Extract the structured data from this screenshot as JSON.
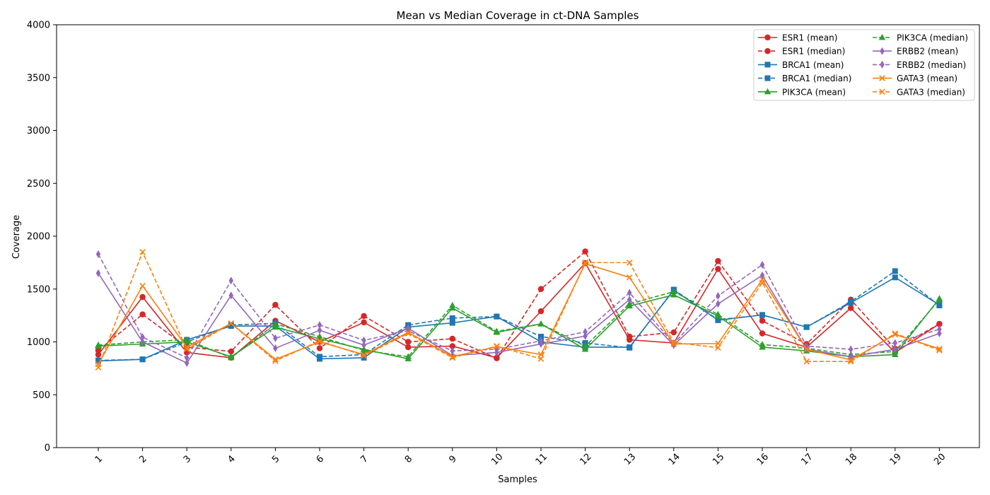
{
  "chart_data": {
    "type": "line",
    "title": "Mean vs Median Coverage in ct-DNA Samples",
    "xlabel": "Samples",
    "ylabel": "Coverage",
    "x": [
      1,
      2,
      3,
      4,
      5,
      6,
      7,
      8,
      9,
      10,
      11,
      12,
      13,
      14,
      15,
      16,
      17,
      18,
      19,
      20
    ],
    "ylim": [
      0,
      4000
    ],
    "yticks": [
      0,
      500,
      1000,
      1500,
      2000,
      2500,
      3000,
      3500,
      4000
    ],
    "grid": false,
    "legend_position": "top-right",
    "series": [
      {
        "name": "ESR1 (mean)",
        "color": "#d62728",
        "marker": "circle",
        "dashed": false,
        "values": [
          880,
          1425,
          900,
          850,
          1200,
          1000,
          1185,
          950,
          960,
          850,
          1290,
          1745,
          1020,
          990,
          1690,
          1080,
          950,
          1320,
          900,
          1170
        ]
      },
      {
        "name": "ESR1 (median)",
        "color": "#d62728",
        "marker": "circle",
        "dashed": true,
        "values": [
          920,
          1260,
          950,
          910,
          1350,
          940,
          1245,
          1000,
          1030,
          845,
          1500,
          1855,
          1050,
          1090,
          1765,
          1200,
          980,
          1400,
          935,
          1170
        ]
      },
      {
        "name": "BRCA1 (mean)",
        "color": "#1f77b4",
        "marker": "square",
        "dashed": false,
        "values": [
          820,
          835,
          1020,
          1150,
          1150,
          840,
          850,
          1140,
          1180,
          1240,
          1000,
          950,
          950,
          1490,
          1205,
          1255,
          1140,
          1370,
          1610,
          1350
        ]
      },
      {
        "name": "BRCA1 (median)",
        "color": "#1f77b4",
        "marker": "square",
        "dashed": true,
        "values": [
          825,
          835,
          1000,
          1160,
          1175,
          860,
          880,
          1160,
          1225,
          1240,
          1050,
          990,
          945,
          1495,
          1210,
          1255,
          1140,
          1380,
          1670,
          1345
        ]
      },
      {
        "name": "PIK3CA (mean)",
        "color": "#2ca02c",
        "marker": "triangle",
        "dashed": false,
        "values": [
          960,
          980,
          1000,
          860,
          1140,
          1030,
          930,
          840,
          1320,
          1090,
          1170,
          930,
          1340,
          1445,
          1245,
          950,
          915,
          860,
          880,
          1410
        ]
      },
      {
        "name": "PIK3CA (median)",
        "color": "#2ca02c",
        "marker": "triangle",
        "dashed": true,
        "values": [
          970,
          1000,
          1020,
          850,
          1170,
          1050,
          920,
          860,
          1345,
          1100,
          1170,
          960,
          1360,
          1475,
          1260,
          975,
          940,
          880,
          910,
          1400
        ]
      },
      {
        "name": "ERBB2 (mean)",
        "color": "#9467bd",
        "marker": "diamond",
        "dashed": false,
        "values": [
          1650,
          1000,
          800,
          1440,
          940,
          1110,
          970,
          1130,
          870,
          900,
          980,
          1055,
          1400,
          970,
          1360,
          1630,
          930,
          860,
          930,
          1080
        ]
      },
      {
        "name": "ERBB2 (median)",
        "color": "#9467bd",
        "marker": "diamond",
        "dashed": true,
        "values": [
          1830,
          1045,
          850,
          1580,
          1035,
          1160,
          1015,
          1105,
          915,
          930,
          1010,
          1095,
          1465,
          985,
          1435,
          1730,
          960,
          930,
          990,
          1120
        ]
      },
      {
        "name": "GATA3 (mean)",
        "color": "#ff7f0e",
        "marker": "x",
        "dashed": false,
        "values": [
          790,
          1530,
          950,
          1175,
          835,
          1000,
          880,
          1090,
          860,
          955,
          880,
          1740,
          1610,
          980,
          985,
          1590,
          930,
          830,
          1070,
          935
        ]
      },
      {
        "name": "GATA3 (median)",
        "color": "#ff7f0e",
        "marker": "x",
        "dashed": true,
        "values": [
          760,
          1850,
          930,
          1175,
          820,
          1010,
          870,
          1080,
          850,
          960,
          840,
          1750,
          1750,
          995,
          945,
          1560,
          815,
          815,
          1080,
          920
        ]
      }
    ]
  }
}
